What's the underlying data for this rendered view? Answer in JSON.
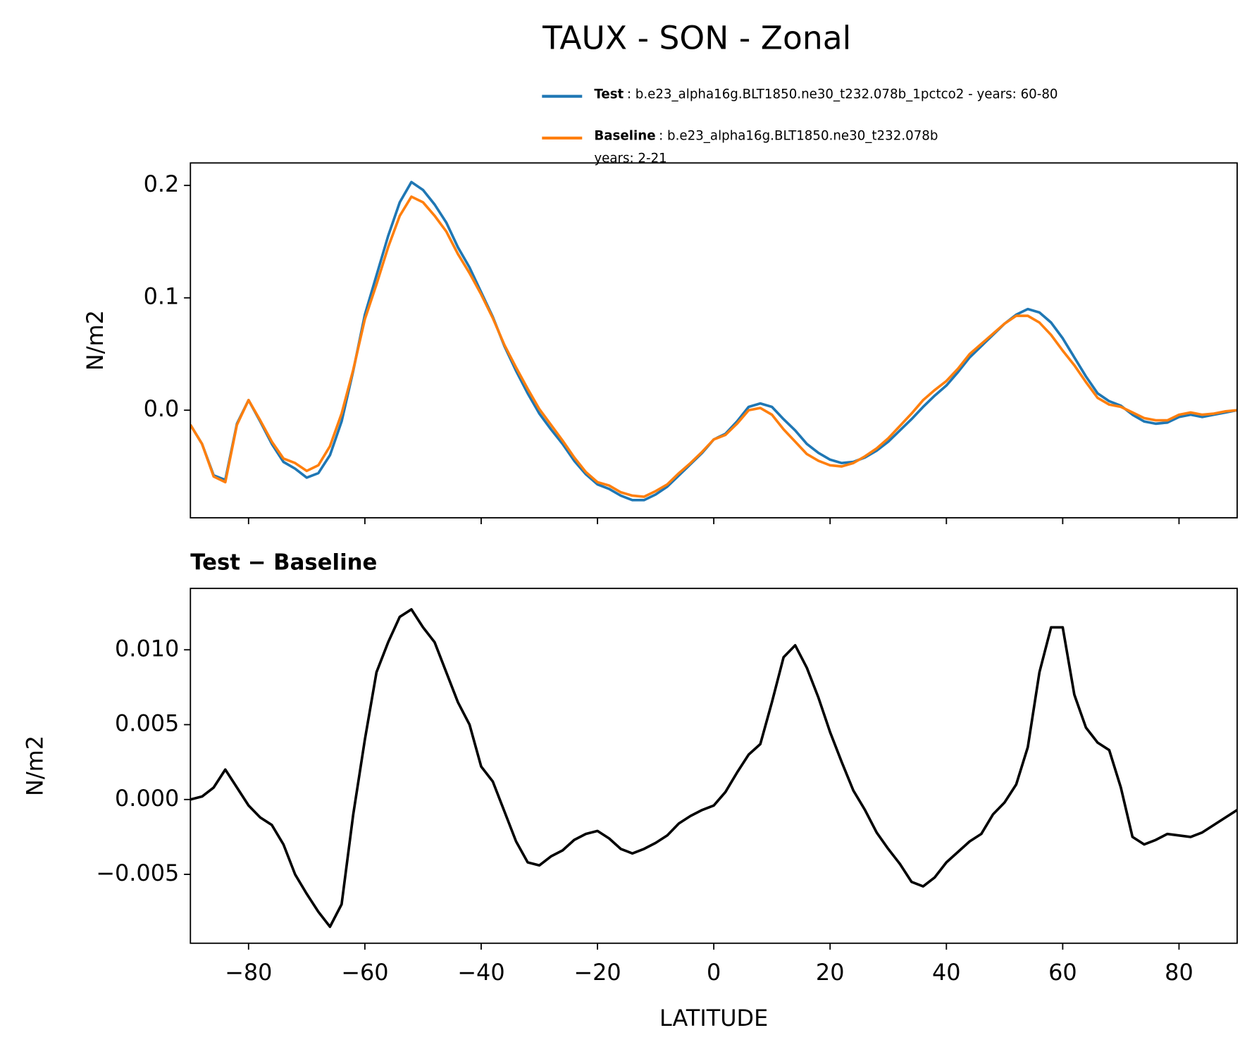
{
  "chart_data": [
    {
      "type": "line",
      "title": "TAUX - SON - Zonal",
      "ylabel": "N/m2",
      "x": [
        -90,
        -88,
        -86,
        -84,
        -82,
        -80,
        -78,
        -76,
        -74,
        -72,
        -70,
        -68,
        -66,
        -64,
        -62,
        -60,
        -58,
        -56,
        -54,
        -52,
        -50,
        -48,
        -46,
        -44,
        -42,
        -40,
        -38,
        -36,
        -34,
        -32,
        -30,
        -28,
        -26,
        -24,
        -22,
        -20,
        -18,
        -16,
        -14,
        -12,
        -10,
        -8,
        -6,
        -4,
        -2,
        0,
        2,
        4,
        6,
        8,
        10,
        12,
        14,
        16,
        18,
        20,
        22,
        24,
        26,
        28,
        30,
        32,
        34,
        36,
        38,
        40,
        42,
        44,
        46,
        48,
        50,
        52,
        54,
        56,
        58,
        60,
        62,
        64,
        66,
        68,
        70,
        72,
        74,
        76,
        78,
        80,
        82,
        84,
        86,
        88,
        90
      ],
      "series": [
        {
          "name": "Test",
          "color": "#1f77b4",
          "legend_text": [
            ": b.e23_alpha16g.BLT1850.ne30_t232.078b_1pctco2 - years: 60-80"
          ],
          "values": [
            -0.013,
            -0.03,
            -0.058,
            -0.062,
            -0.012,
            0.009,
            -0.01,
            -0.03,
            -0.046,
            -0.052,
            -0.06,
            -0.056,
            -0.04,
            -0.01,
            0.035,
            0.085,
            0.12,
            0.155,
            0.185,
            0.203,
            0.196,
            0.183,
            0.167,
            0.145,
            0.127,
            0.105,
            0.083,
            0.057,
            0.035,
            0.015,
            -0.003,
            -0.017,
            -0.03,
            -0.045,
            -0.057,
            -0.066,
            -0.07,
            -0.076,
            -0.08,
            -0.08,
            -0.075,
            -0.068,
            -0.058,
            -0.048,
            -0.038,
            -0.026,
            -0.021,
            -0.01,
            0.003,
            0.006,
            0.003,
            -0.008,
            -0.018,
            -0.03,
            -0.038,
            -0.044,
            -0.047,
            -0.046,
            -0.042,
            -0.036,
            -0.028,
            -0.018,
            -0.008,
            0.003,
            0.013,
            0.022,
            0.034,
            0.047,
            0.057,
            0.067,
            0.077,
            0.085,
            0.09,
            0.087,
            0.078,
            0.064,
            0.047,
            0.03,
            0.015,
            0.008,
            0.004,
            -0.004,
            -0.01,
            -0.012,
            -0.011,
            -0.006,
            -0.004,
            -0.006,
            -0.004,
            -0.002,
            0.0
          ]
        },
        {
          "name": "Baseline",
          "color": "#ff7f0e",
          "legend_text": [
            ": b.e23_alpha16g.BLT1850.ne30_t232.078b",
            "years: 2-21"
          ],
          "values": [
            -0.013,
            -0.03,
            -0.059,
            -0.064,
            -0.013,
            0.009,
            -0.009,
            -0.028,
            -0.043,
            -0.047,
            -0.054,
            -0.049,
            -0.032,
            -0.003,
            0.036,
            0.081,
            0.112,
            0.145,
            0.173,
            0.19,
            0.185,
            0.173,
            0.159,
            0.139,
            0.122,
            0.103,
            0.082,
            0.058,
            0.038,
            0.019,
            0.001,
            -0.013,
            -0.027,
            -0.042,
            -0.055,
            -0.064,
            -0.067,
            -0.073,
            -0.076,
            -0.077,
            -0.072,
            -0.066,
            -0.056,
            -0.047,
            -0.037,
            -0.026,
            -0.022,
            -0.012,
            0.0,
            0.002,
            -0.004,
            -0.017,
            -0.028,
            -0.039,
            -0.045,
            -0.049,
            -0.05,
            -0.047,
            -0.041,
            -0.034,
            -0.025,
            -0.014,
            -0.003,
            0.009,
            0.018,
            0.026,
            0.037,
            0.05,
            0.059,
            0.068,
            0.077,
            0.084,
            0.084,
            0.078,
            0.067,
            0.053,
            0.04,
            0.025,
            0.011,
            0.005,
            0.003,
            -0.002,
            -0.007,
            -0.009,
            -0.009,
            -0.004,
            -0.002,
            -0.004,
            -0.003,
            -0.001,
            0.0
          ]
        }
      ],
      "xlim": [
        -90,
        90
      ],
      "xticks": [
        -80,
        -60,
        -40,
        -20,
        0,
        20,
        40,
        60,
        80
      ],
      "ylim": [
        -0.0957,
        0.22
      ],
      "yticks": [
        {
          "value": 0,
          "label": "0.0"
        },
        {
          "value": 0.1,
          "label": "0.1"
        },
        {
          "value": 0.2,
          "label": "0.2"
        }
      ]
    },
    {
      "type": "line",
      "title": "Test − Baseline",
      "ylabel": "N/m2",
      "xlabel": "LATITUDE",
      "x": [
        -90,
        -88,
        -86,
        -84,
        -82,
        -80,
        -78,
        -76,
        -74,
        -72,
        -70,
        -68,
        -66,
        -64,
        -62,
        -60,
        -58,
        -56,
        -54,
        -52,
        -50,
        -48,
        -46,
        -44,
        -42,
        -40,
        -38,
        -36,
        -34,
        -32,
        -30,
        -28,
        -26,
        -24,
        -22,
        -20,
        -18,
        -16,
        -14,
        -12,
        -10,
        -8,
        -6,
        -4,
        -2,
        0,
        2,
        4,
        6,
        8,
        10,
        12,
        14,
        16,
        18,
        20,
        22,
        24,
        26,
        28,
        30,
        32,
        34,
        36,
        38,
        40,
        42,
        44,
        46,
        48,
        50,
        52,
        54,
        56,
        58,
        60,
        62,
        64,
        66,
        68,
        70,
        72,
        74,
        76,
        78,
        80,
        82,
        84,
        86,
        88,
        90
      ],
      "series": [
        {
          "color": "#000000",
          "values": [
            0.0,
            0.0002,
            0.0008,
            0.002,
            0.0008,
            -0.0004,
            -0.0012,
            -0.0017,
            -0.003,
            -0.005,
            -0.0063,
            -0.0075,
            -0.0085,
            -0.007,
            -0.001,
            0.004,
            0.0085,
            0.0105,
            0.0122,
            0.0127,
            0.0115,
            0.0105,
            0.0085,
            0.0065,
            0.005,
            0.0022,
            0.0012,
            -0.0008,
            -0.0028,
            -0.0042,
            -0.0044,
            -0.0038,
            -0.0034,
            -0.0027,
            -0.0023,
            -0.0021,
            -0.0026,
            -0.0033,
            -0.0036,
            -0.0033,
            -0.0029,
            -0.0024,
            -0.0016,
            -0.0011,
            -0.0007,
            -0.0004,
            0.0005,
            0.0018,
            0.003,
            0.0037,
            0.0065,
            0.0095,
            0.0103,
            0.0088,
            0.0068,
            0.0045,
            0.0025,
            0.0006,
            -0.0007,
            -0.0022,
            -0.0033,
            -0.0043,
            -0.0055,
            -0.0058,
            -0.0052,
            -0.0042,
            -0.0035,
            -0.0028,
            -0.0023,
            -0.001,
            -0.0002,
            0.001,
            0.0035,
            0.0085,
            0.0115,
            0.0115,
            0.007,
            0.0048,
            0.0038,
            0.0033,
            0.0008,
            -0.0025,
            -0.003,
            -0.0027,
            -0.0023,
            -0.0024,
            -0.0025,
            -0.0022,
            -0.0017,
            -0.0012,
            -0.0007
          ]
        }
      ],
      "xlim": [
        -90,
        90
      ],
      "xticks": [
        {
          "value": -80,
          "label": "−80"
        },
        {
          "value": -60,
          "label": "−60"
        },
        {
          "value": -40,
          "label": "−40"
        },
        {
          "value": -20,
          "label": "−20"
        },
        0,
        20,
        40,
        60,
        80
      ],
      "ylim": [
        -0.0096,
        0.0141
      ],
      "yticks": [
        {
          "value": -0.005,
          "label": "−0.005"
        },
        {
          "value": 0,
          "label": "0.000"
        },
        {
          "value": 0.005,
          "label": "0.005"
        },
        {
          "value": 0.01,
          "label": "0.010"
        }
      ]
    }
  ]
}
